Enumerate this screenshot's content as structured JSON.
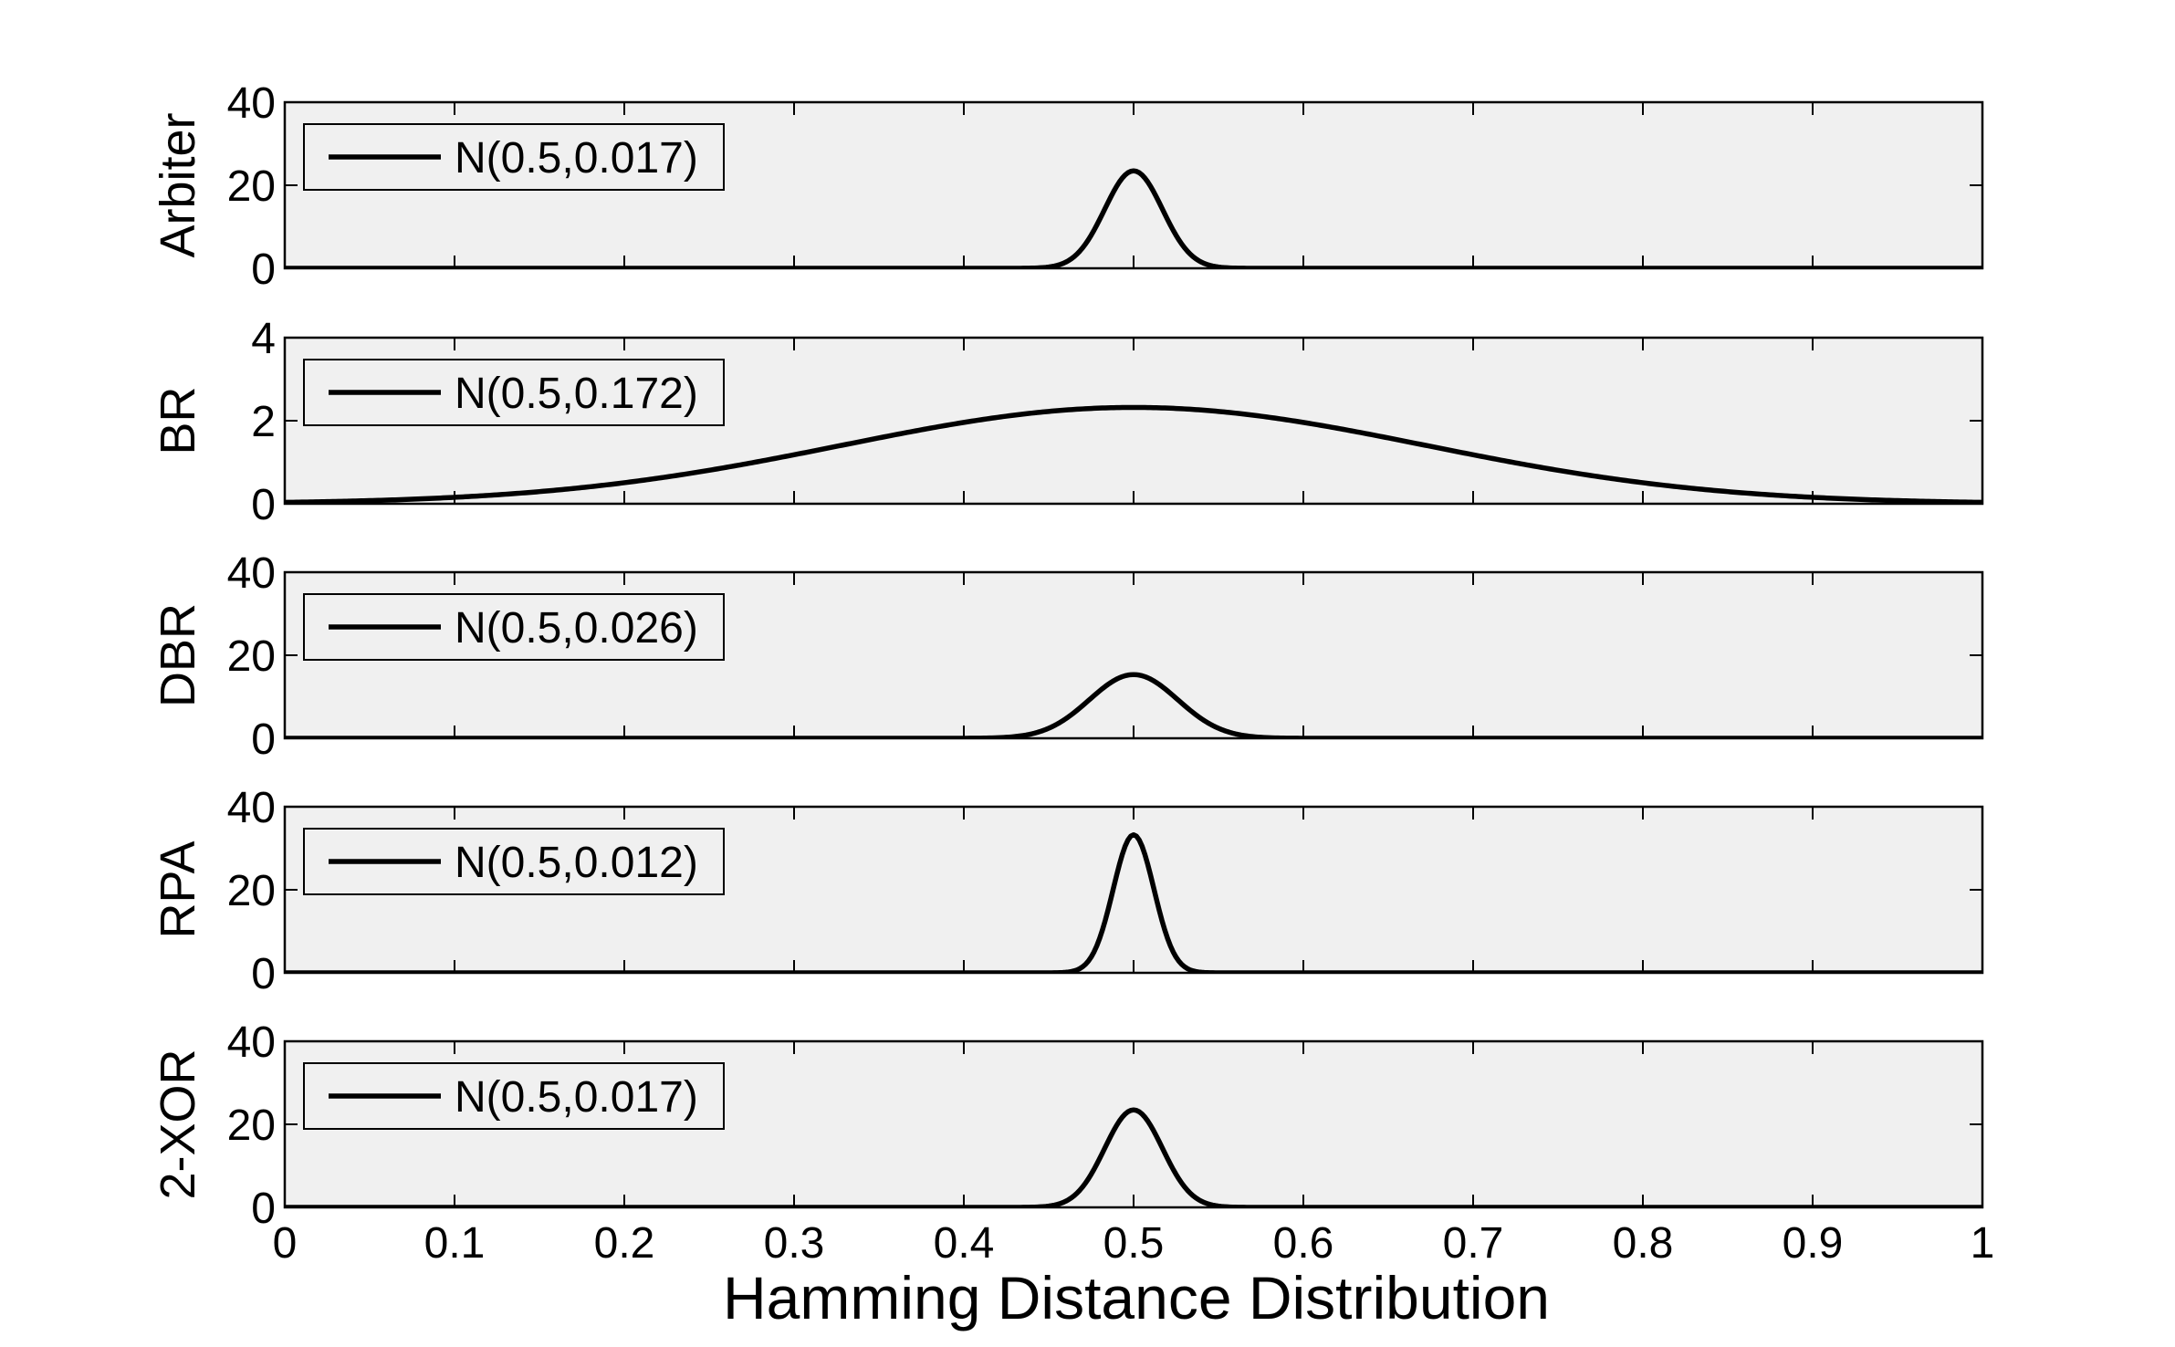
{
  "chart_data": [
    {
      "type": "line",
      "ylabel": "Arbiter",
      "xlim": [
        0,
        1
      ],
      "ylim": [
        0,
        40
      ],
      "yticks": [
        0,
        20,
        40
      ],
      "grid": false,
      "legend": "top-left",
      "series": [
        {
          "name": "N(0.5,0.017)",
          "mean": 0.5,
          "std": 0.017
        }
      ]
    },
    {
      "type": "line",
      "ylabel": "BR",
      "xlim": [
        0,
        1
      ],
      "ylim": [
        0,
        4
      ],
      "yticks": [
        0,
        2,
        4
      ],
      "grid": false,
      "legend": "top-left",
      "series": [
        {
          "name": "N(0.5,0.172)",
          "mean": 0.5,
          "std": 0.172
        }
      ]
    },
    {
      "type": "line",
      "ylabel": "DBR",
      "xlim": [
        0,
        1
      ],
      "ylim": [
        0,
        40
      ],
      "yticks": [
        0,
        20,
        40
      ],
      "grid": false,
      "legend": "top-left",
      "series": [
        {
          "name": "N(0.5,0.026)",
          "mean": 0.5,
          "std": 0.026
        }
      ]
    },
    {
      "type": "line",
      "ylabel": "RPA",
      "xlim": [
        0,
        1
      ],
      "ylim": [
        0,
        40
      ],
      "yticks": [
        0,
        20,
        40
      ],
      "grid": false,
      "legend": "top-left",
      "series": [
        {
          "name": "N(0.5,0.012)",
          "mean": 0.5,
          "std": 0.012
        }
      ]
    },
    {
      "type": "line",
      "ylabel": "2-XOR",
      "xlim": [
        0,
        1
      ],
      "ylim": [
        0,
        40
      ],
      "yticks": [
        0,
        20,
        40
      ],
      "grid": false,
      "legend": "top-left",
      "series": [
        {
          "name": "N(0.5,0.017)",
          "mean": 0.5,
          "std": 0.017
        }
      ]
    }
  ],
  "shared_x": {
    "xlabel": "Hamming Distance Distribution",
    "ticks": [
      0,
      0.1,
      0.2,
      0.3,
      0.4,
      0.5,
      0.6,
      0.7,
      0.8,
      0.9,
      1
    ],
    "tick_labels": [
      "0",
      "0.1",
      "0.2",
      "0.3",
      "0.4",
      "0.5",
      "0.6",
      "0.7",
      "0.8",
      "0.9",
      "1"
    ]
  },
  "style": {
    "axes_background": "#f0f0f0",
    "line_color": "#000000",
    "page_background": "#ffffff"
  }
}
